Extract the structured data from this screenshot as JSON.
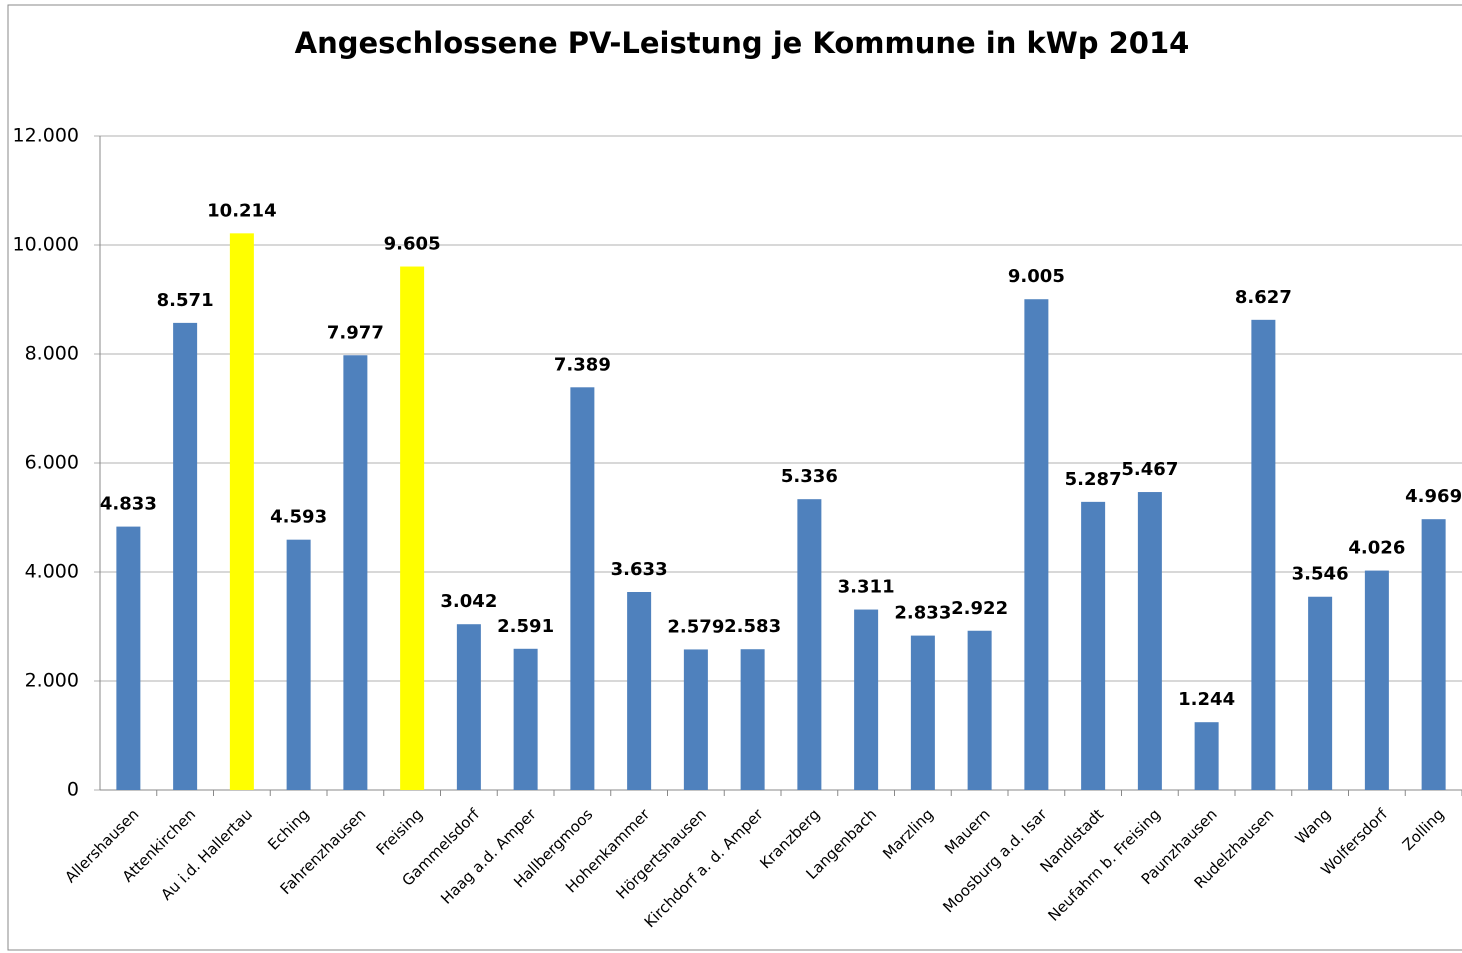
{
  "chart_data": {
    "type": "bar",
    "title": "Angeschlossene PV-Leistung je Kommune in kWp 2014",
    "categories": [
      "Allershausen",
      "Attenkirchen",
      "Au i.d. Hallertau",
      "Eching",
      "Fahrenzhausen",
      "Freising",
      "Gammelsdorf",
      "Haag a.d. Amper",
      "Hallbergmoos",
      "Hohenkammer",
      "Hörgertshausen",
      "Kirchdorf a. d. Amper",
      "Kranzberg",
      "Langenbach",
      "Marzling",
      "Mauern",
      "Moosburg a.d. Isar",
      "Nandlstadt",
      "Neufahrn b. Freising",
      "Paunzhausen",
      "Rudelzhausen",
      "Wang",
      "Wolfersdorf",
      "Zolling"
    ],
    "values": [
      4833,
      8571,
      10214,
      4593,
      7977,
      9605,
      3042,
      2591,
      7389,
      3633,
      2579,
      2583,
      5336,
      3311,
      2833,
      2922,
      9005,
      5287,
      5467,
      1244,
      8627,
      3546,
      4026,
      4969
    ],
    "value_labels": [
      "4.833",
      "8.571",
      "10.214",
      "4.593",
      "7.977",
      "9.605",
      "3.042",
      "2.591",
      "7.389",
      "3.633",
      "2.579",
      "2.583",
      "5.336",
      "3.311",
      "2.833",
      "2.922",
      "9.005",
      "5.287",
      "5.467",
      "1.244",
      "8.627",
      "3.546",
      "4.026",
      "4.969"
    ],
    "colors": [
      "#4f81bd",
      "#4f81bd",
      "#ffff00",
      "#4f81bd",
      "#4f81bd",
      "#ffff00",
      "#4f81bd",
      "#4f81bd",
      "#4f81bd",
      "#4f81bd",
      "#4f81bd",
      "#4f81bd",
      "#4f81bd",
      "#4f81bd",
      "#4f81bd",
      "#4f81bd",
      "#4f81bd",
      "#4f81bd",
      "#4f81bd",
      "#4f81bd",
      "#4f81bd",
      "#4f81bd",
      "#4f81bd",
      "#4f81bd"
    ],
    "ylim": [
      0,
      12000
    ],
    "yticks": [
      {
        "value": 0,
        "label": "0"
      },
      {
        "value": 2000,
        "label": "2.000"
      },
      {
        "value": 4000,
        "label": "4.000"
      },
      {
        "value": 6000,
        "label": "6.000"
      },
      {
        "value": 8000,
        "label": "8.000"
      },
      {
        "value": 10000,
        "label": "10.000"
      },
      {
        "value": 12000,
        "label": "12.000"
      }
    ],
    "grid": true
  }
}
